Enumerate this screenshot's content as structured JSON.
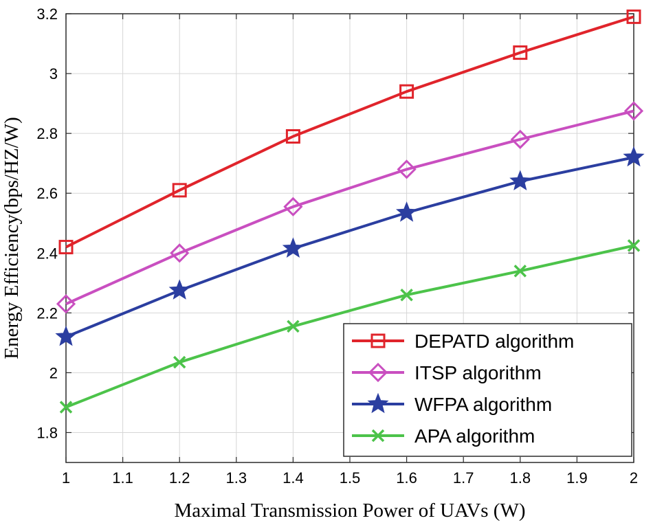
{
  "chart_data": {
    "type": "line",
    "title": "",
    "xlabel": "Maximal Transmission Power of UAVs (W)",
    "ylabel": "Energy Efficiency(bps/HZ/W)",
    "xlim": [
      1,
      2
    ],
    "ylim": [
      1.7,
      3.2
    ],
    "xticks": [
      1,
      1.1,
      1.2,
      1.3,
      1.4,
      1.5,
      1.6,
      1.7,
      1.8,
      1.9,
      2
    ],
    "yticks": [
      1.8,
      2,
      2.2,
      2.4,
      2.6,
      2.8,
      3,
      3.2
    ],
    "xtick_labels": [
      "1",
      "1.1",
      "1.2",
      "1.3",
      "1.4",
      "1.5",
      "1.6",
      "1.7",
      "1.8",
      "1.9",
      "2"
    ],
    "ytick_labels": [
      "1.8",
      "2",
      "2.2",
      "2.4",
      "2.6",
      "2.8",
      "3",
      "3.2"
    ],
    "grid": true,
    "legend_position": "bottom-right",
    "x": [
      1,
      1.2,
      1.4,
      1.6,
      1.8,
      2
    ],
    "series": [
      {
        "name": "DEPATD algorithm",
        "marker": "square",
        "color": "#e0242b",
        "values": [
          2.42,
          2.61,
          2.79,
          2.94,
          3.07,
          3.19
        ]
      },
      {
        "name": "ITSP algorithm",
        "marker": "diamond",
        "color": "#c94fc0",
        "values": [
          2.23,
          2.4,
          2.555,
          2.68,
          2.78,
          2.875
        ]
      },
      {
        "name": "WFPA algorithm",
        "marker": "star",
        "color": "#2b3ea0",
        "values": [
          2.12,
          2.275,
          2.415,
          2.535,
          2.64,
          2.72
        ]
      },
      {
        "name": "APA algorithm",
        "marker": "x",
        "color": "#4cc34a",
        "values": [
          1.885,
          2.035,
          2.155,
          2.26,
          2.34,
          2.425
        ]
      }
    ]
  }
}
